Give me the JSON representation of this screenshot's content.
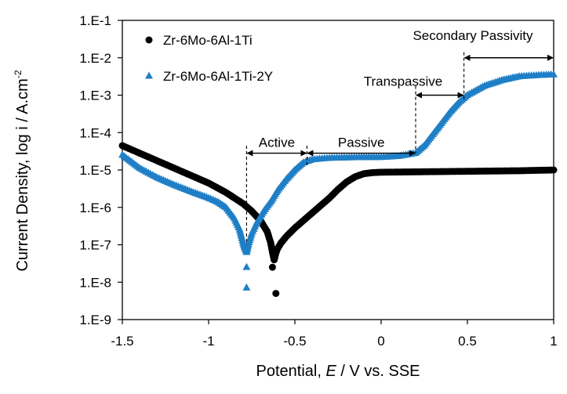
{
  "chart_data": {
    "type": "scatter",
    "title": "",
    "xlabel_parts": [
      "Potential, ",
      "E",
      " / V vs. SSE"
    ],
    "ylabel": "Current Density, log i / A.cm",
    "ylabel_sup": "-2",
    "xlim": [
      -1.5,
      1.0
    ],
    "ylim_log10": [
      -9,
      -1
    ],
    "x_ticks": [
      -1.5,
      -1.0,
      -0.5,
      0.0,
      0.5,
      1.0
    ],
    "x_tick_labels": [
      "-1.5",
      "-1",
      "-0.5",
      "0",
      "0.5",
      "1"
    ],
    "y_ticks_log10": [
      -9,
      -8,
      -7,
      -6,
      -5,
      -4,
      -3,
      -2,
      -1
    ],
    "y_tick_labels": [
      "1.E-9",
      "1.E-8",
      "1.E-7",
      "1.E-6",
      "1.E-5",
      "1.E-4",
      "1.E-3",
      "1.E-2",
      "1.E-1"
    ],
    "grid": false,
    "legend_position": "top-left",
    "series": [
      {
        "name": "Zr-6Mo-6Al-1Ti",
        "marker": "circle",
        "color": "#000000",
        "anodic": [
          [
            -0.62,
            -7.4
          ],
          [
            -0.61,
            -7.22
          ],
          [
            -0.6,
            -7.1
          ],
          [
            -0.58,
            -6.95
          ],
          [
            -0.55,
            -6.78
          ],
          [
            -0.5,
            -6.55
          ],
          [
            -0.45,
            -6.35
          ],
          [
            -0.4,
            -6.15
          ],
          [
            -0.35,
            -5.95
          ],
          [
            -0.3,
            -5.75
          ],
          [
            -0.25,
            -5.52
          ],
          [
            -0.2,
            -5.32
          ],
          [
            -0.15,
            -5.18
          ],
          [
            -0.1,
            -5.1
          ],
          [
            -0.05,
            -5.07
          ],
          [
            0.0,
            -5.06
          ],
          [
            0.2,
            -5.05
          ],
          [
            0.4,
            -5.04
          ],
          [
            0.6,
            -5.03
          ],
          [
            0.8,
            -5.02
          ],
          [
            1.0,
            -5.0
          ]
        ],
        "cathodic": [
          [
            -1.5,
            -4.35
          ],
          [
            -1.4,
            -4.55
          ],
          [
            -1.3,
            -4.75
          ],
          [
            -1.2,
            -4.95
          ],
          [
            -1.1,
            -5.15
          ],
          [
            -1.0,
            -5.35
          ],
          [
            -0.9,
            -5.6
          ],
          [
            -0.8,
            -5.9
          ],
          [
            -0.75,
            -6.1
          ],
          [
            -0.7,
            -6.35
          ],
          [
            -0.66,
            -6.65
          ],
          [
            -0.64,
            -6.95
          ],
          [
            -0.63,
            -7.2
          ],
          [
            -0.62,
            -7.4
          ]
        ],
        "outliers": [
          [
            -0.61,
            -8.3
          ],
          [
            -0.63,
            -7.6
          ]
        ]
      },
      {
        "name": "Zr-6Mo-6Al-1Ti-2Y",
        "marker": "triangle",
        "color": "#1f7fc6",
        "anodic": [
          [
            -0.78,
            -7.2
          ],
          [
            -0.77,
            -7.0
          ],
          [
            -0.75,
            -6.7
          ],
          [
            -0.72,
            -6.4
          ],
          [
            -0.68,
            -6.1
          ],
          [
            -0.64,
            -5.85
          ],
          [
            -0.6,
            -5.55
          ],
          [
            -0.55,
            -5.25
          ],
          [
            -0.5,
            -5.0
          ],
          [
            -0.45,
            -4.8
          ],
          [
            -0.4,
            -4.72
          ],
          [
            -0.3,
            -4.68
          ],
          [
            -0.2,
            -4.67
          ],
          [
            -0.1,
            -4.66
          ],
          [
            0.0,
            -4.66
          ],
          [
            0.1,
            -4.63
          ],
          [
            0.2,
            -4.55
          ],
          [
            0.25,
            -4.35
          ],
          [
            0.3,
            -4.05
          ],
          [
            0.35,
            -3.75
          ],
          [
            0.4,
            -3.45
          ],
          [
            0.45,
            -3.2
          ],
          [
            0.5,
            -3.0
          ],
          [
            0.6,
            -2.75
          ],
          [
            0.7,
            -2.6
          ],
          [
            0.8,
            -2.5
          ],
          [
            0.9,
            -2.47
          ],
          [
            1.0,
            -2.45
          ]
        ],
        "cathodic": [
          [
            -1.5,
            -4.6
          ],
          [
            -1.4,
            -4.95
          ],
          [
            -1.3,
            -5.2
          ],
          [
            -1.2,
            -5.4
          ],
          [
            -1.1,
            -5.58
          ],
          [
            -1.0,
            -5.75
          ],
          [
            -0.95,
            -5.85
          ],
          [
            -0.9,
            -6.0
          ],
          [
            -0.85,
            -6.3
          ],
          [
            -0.82,
            -6.6
          ],
          [
            -0.8,
            -6.95
          ],
          [
            -0.79,
            -7.1
          ],
          [
            -0.78,
            -7.2
          ]
        ],
        "outliers": [
          [
            -0.78,
            -8.15
          ],
          [
            -0.78,
            -7.6
          ]
        ]
      }
    ],
    "annotations": {
      "active_label": "Active",
      "passive_label": "Passive",
      "transpassive_label": "Transpassive",
      "secondary_label": "Secondary Passivity",
      "boundaries_V": [
        -0.78,
        -0.43,
        0.2,
        0.48,
        1.0
      ],
      "active_arrow_log10": -4.55,
      "passive_arrow_log10": -4.55,
      "transpassive_arrow_log10": -3.0,
      "secondary_arrow_log10": -2.0
    }
  }
}
